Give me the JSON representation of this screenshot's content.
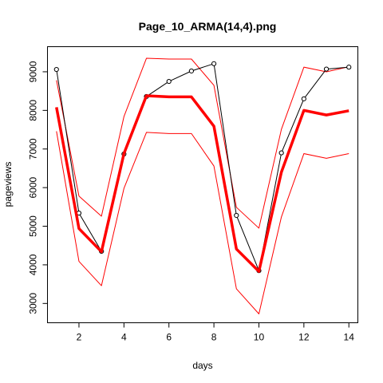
{
  "chart_data": {
    "type": "line",
    "title": "Page_10_ARMA(14,4).png",
    "xlabel": "days",
    "ylabel": "pageviews",
    "xlim": [
      0.6,
      14.4
    ],
    "ylim": [
      2500,
      9650
    ],
    "x_ticks": [
      2,
      4,
      6,
      8,
      10,
      12,
      14
    ],
    "y_ticks": [
      3000,
      4000,
      5000,
      6000,
      7000,
      8000,
      9000
    ],
    "grid": false,
    "legend": "none",
    "x": [
      1,
      2,
      3,
      4,
      5,
      6,
      7,
      8,
      9,
      10,
      11,
      12,
      13,
      14
    ],
    "series": [
      {
        "role": "actual",
        "color": "#000000",
        "markers": "open-circle",
        "values": [
          9060,
          5340,
          4350,
          6870,
          8360,
          8750,
          9020,
          9210,
          5280,
          3850,
          6900,
          8300,
          9070,
          9120
        ]
      },
      {
        "role": "forecast",
        "color": "#ff0000",
        "values": [
          8080,
          4940,
          4340,
          6880,
          8380,
          8350,
          8350,
          7590,
          4410,
          3830,
          6400,
          8000,
          7880,
          7990
        ]
      },
      {
        "role": "upper-bound",
        "color": "#ff0000",
        "values": [
          8780,
          5780,
          5260,
          7840,
          9350,
          9330,
          9330,
          8650,
          5490,
          4950,
          7510,
          9120,
          9000,
          9130
        ]
      },
      {
        "role": "lower-bound",
        "color": "#ff0000",
        "values": [
          7460,
          4090,
          3460,
          5980,
          7430,
          7400,
          7400,
          6560,
          3380,
          2730,
          5240,
          6880,
          6760,
          6880
        ]
      }
    ]
  }
}
